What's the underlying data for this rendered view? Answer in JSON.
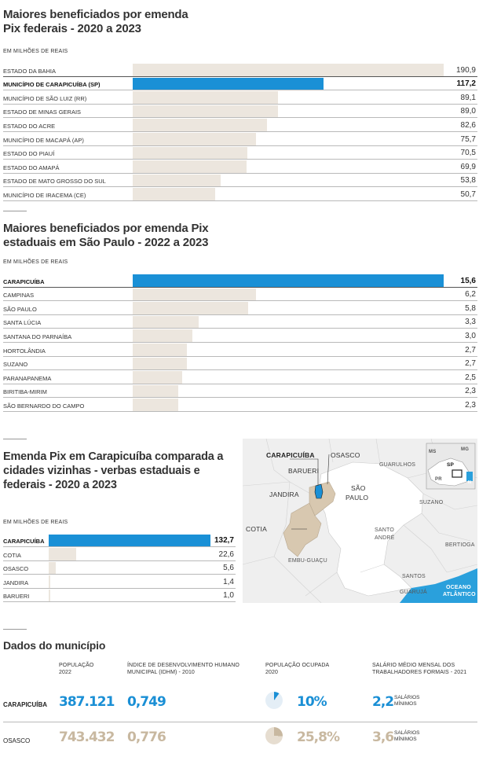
{
  "chart_data": [
    {
      "type": "bar",
      "title_lines": [
        "Maiores beneficiados por emenda",
        "Pix federais - 2020 a 2023"
      ],
      "unit_label": "EM MILHÕES DE REAIS",
      "categories": [
        "ESTADO DA BAHIA",
        "MUNICÍPIO DE CARAPICUÍBA (SP)",
        "MUNICÍPIO DE SÃO LUIZ (RR)",
        "ESTADO DE MINAS GERAIS",
        "ESTADO DO ACRE",
        "MUNICÍPIO DE MACAPÁ (AP)",
        "ESTADO DO PIAUÍ",
        "ESTADO DO AMAPÁ",
        "ESTADO DE MATO GROSSO DO SUL",
        "MUNICÍPIO DE IRACEMA (CE)"
      ],
      "values": [
        190.9,
        117.2,
        89.1,
        89.0,
        82.6,
        75.7,
        70.5,
        69.9,
        53.8,
        50.7
      ],
      "value_labels": [
        "190,9",
        "117,2",
        "89,1",
        "89,0",
        "82,6",
        "75,7",
        "70,5",
        "69,9",
        "53,8",
        "50,7"
      ],
      "highlight_index": 1,
      "max": 190.9
    },
    {
      "type": "bar",
      "title_lines": [
        "Maiores beneficiados por emenda Pix",
        "estaduais em São Paulo - 2022 a 2023"
      ],
      "unit_label": "EM MILHÕES DE REAIS",
      "categories": [
        "CARAPICUÍBA",
        "CAMPINAS",
        "SÃO PAULO",
        "SANTA LÚCIA",
        "SANTANA DO PARNAÍBA",
        "HORTOLÂNDIA",
        "SUZANO",
        "PARANAPANEMA",
        "BIRITIBA-MIRIM",
        "SÃO BERNARDO DO CAMPO"
      ],
      "values": [
        15.6,
        6.2,
        5.8,
        3.3,
        3.0,
        2.7,
        2.7,
        2.5,
        2.3,
        2.3
      ],
      "value_labels": [
        "15,6",
        "6,2",
        "5,8",
        "3,3",
        "3,0",
        "2,7",
        "2,7",
        "2,5",
        "2,3",
        "2,3"
      ],
      "highlight_index": 0,
      "max": 15.6
    },
    {
      "type": "bar",
      "title_lines": [
        "Emenda Pix em Carapicuíba comparada a",
        "cidades vizinhas - verbas estaduais e",
        "federais - 2020 a 2023"
      ],
      "unit_label": "EM MILHÕES DE REAIS",
      "categories": [
        "CARAPICUÍBA",
        "COTIA",
        "OSASCO",
        "JANDIRA",
        "BARUERI"
      ],
      "values": [
        132.7,
        22.6,
        5.6,
        1.4,
        1.0
      ],
      "value_labels": [
        "132,7",
        "22,6",
        "5,6",
        "1,4",
        "1,0"
      ],
      "highlight_index": 0,
      "max": 132.7
    }
  ],
  "map": {
    "labels": [
      "CARAPICUÍBA",
      "OSASCO",
      "BARUERI",
      "JANDIRA",
      "SÃO",
      "PAULO",
      "GUARULHOS",
      "SUZANO",
      "COTIA",
      "SANTO",
      "ANDRÉ",
      "BERTIOGA",
      "EMBU-GUAÇU",
      "SANTOS",
      "GUARUJÁ",
      "OCEANO",
      "ATLÂNTICO"
    ],
    "inset": [
      "MS",
      "MG",
      "SP",
      "PR",
      "N"
    ]
  },
  "dados": {
    "title": "Dados do município",
    "headers": [
      [
        "POPULAÇÃO",
        "2022"
      ],
      [
        "ÍNDICE DE DESENVOLVIMENTO HUMANO",
        "MUNICIPAL (IDHM) - 2010"
      ],
      [
        "POPULAÇÃO OCUPADA",
        "2020"
      ],
      [
        "SALÁRIO MÉDIO MENSAL DOS",
        "TRABALHADORES FORMAIS - 2021"
      ]
    ],
    "rows": [
      {
        "city": "CARAPICUÍBA",
        "pop": "387.121",
        "idhm": "0,749",
        "ocupada": "10%",
        "ocupada_pct": 10,
        "salario": "2,2",
        "salario_unit": [
          "SALÁRIOS",
          "MÍNIMOS"
        ],
        "color": "#1a8fd5"
      },
      {
        "city": "OSASCO",
        "pop": "743.432",
        "idhm": "0,776",
        "ocupada": "25,8%",
        "ocupada_pct": 25.8,
        "salario": "3,6",
        "salario_unit": [
          "SALÁRIOS",
          "MÍNIMOS"
        ],
        "color": "#c8b8a0"
      }
    ]
  },
  "colors": {
    "highlight": "#1a90d6",
    "bar": "#ece6de",
    "tan": "#c8b8a0",
    "ocean": "#2aa0dc"
  }
}
